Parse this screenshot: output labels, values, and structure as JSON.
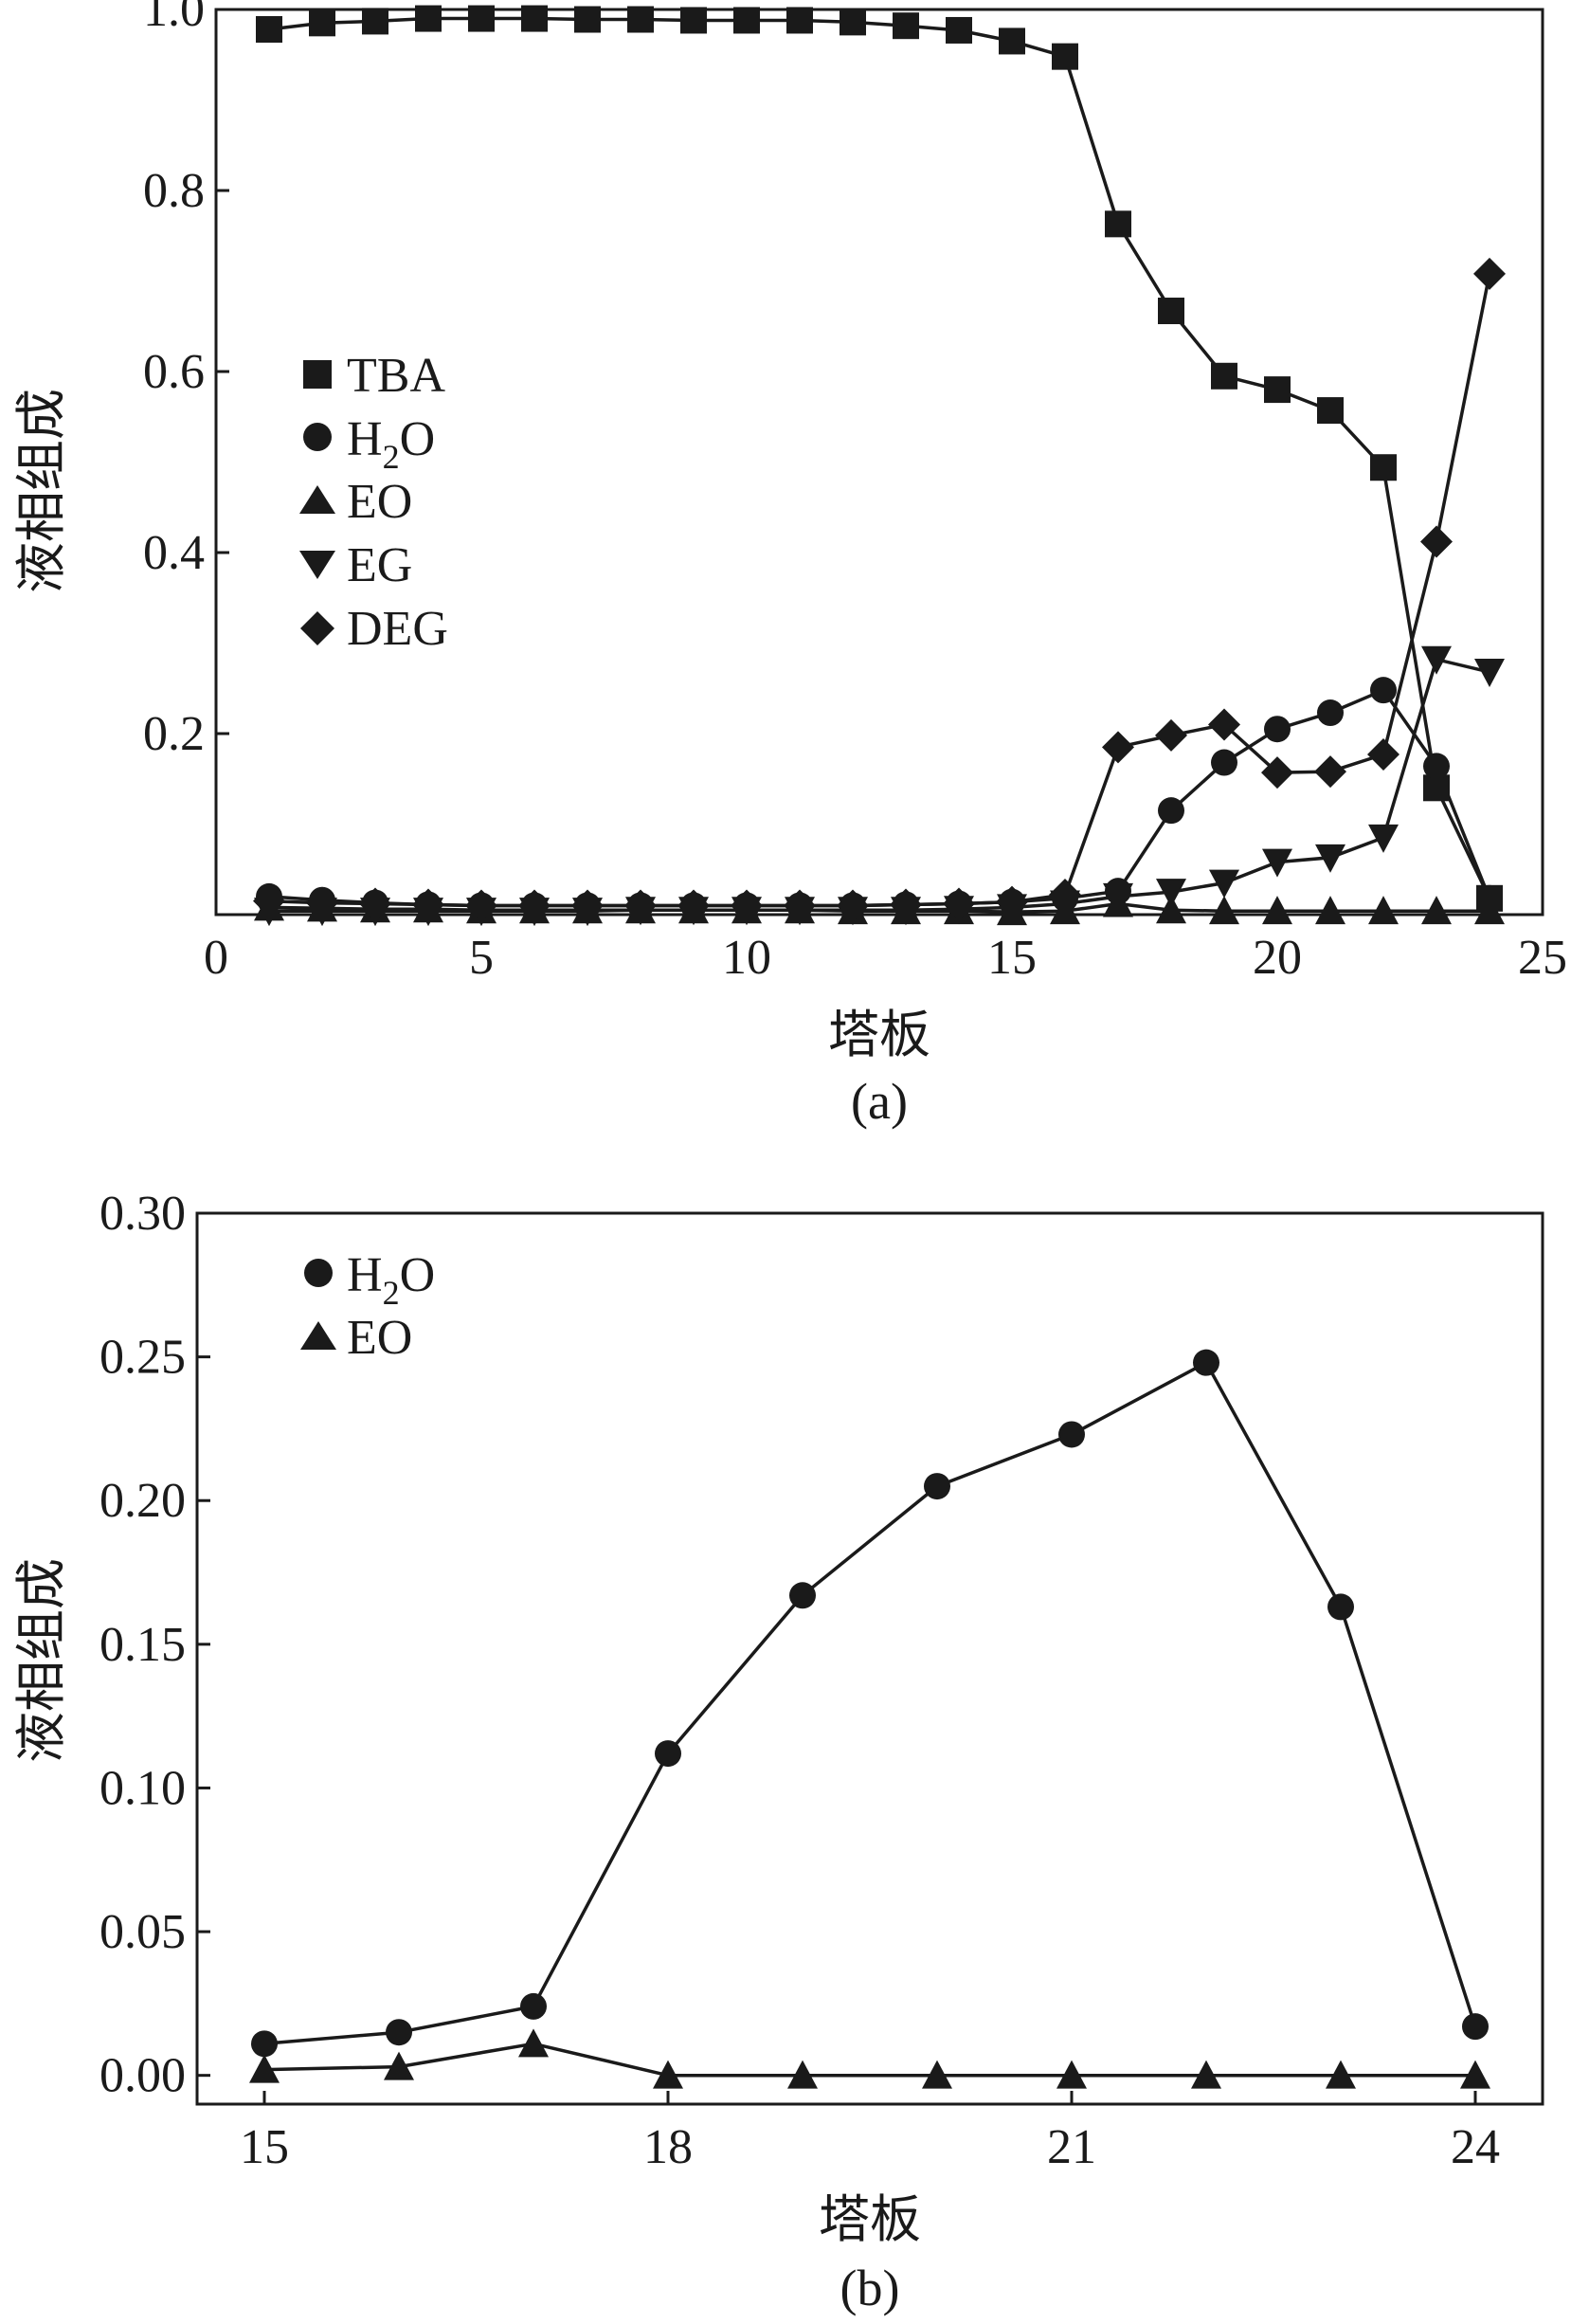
{
  "chart_data": [
    {
      "type": "line",
      "panel_label": "(a)",
      "xlabel": "塔板",
      "ylabel": "液相组成",
      "xlim": [
        0,
        25
      ],
      "ylim": [
        0,
        1.0
      ],
      "xticks": [
        "0",
        "5",
        "10",
        "15",
        "20",
        "25"
      ],
      "yticks": [
        "0.2",
        "0.4",
        "0.6",
        "0.8",
        "1.0"
      ],
      "legend_position": "center-left",
      "x": [
        1,
        2,
        3,
        4,
        5,
        6,
        7,
        8,
        9,
        10,
        11,
        12,
        13,
        14,
        15,
        16,
        17,
        18,
        19,
        20,
        21,
        22,
        23,
        24
      ],
      "series": [
        {
          "name": "TBA",
          "marker": "square",
          "values": [
            0.978,
            0.985,
            0.987,
            0.99,
            0.99,
            0.99,
            0.989,
            0.989,
            0.988,
            0.988,
            0.988,
            0.986,
            0.982,
            0.977,
            0.965,
            0.948,
            0.763,
            0.667,
            0.595,
            0.58,
            0.557,
            0.494,
            0.14,
            0.018
          ]
        },
        {
          "name": "H2O",
          "name_base": "H",
          "name_sub": "2",
          "name_rest": "O",
          "marker": "circle",
          "values": [
            0.02,
            0.016,
            0.013,
            0.011,
            0.01,
            0.01,
            0.01,
            0.01,
            0.01,
            0.01,
            0.01,
            0.01,
            0.011,
            0.012,
            0.014,
            0.018,
            0.026,
            0.115,
            0.168,
            0.205,
            0.223,
            0.248,
            0.164,
            0.018
          ]
        },
        {
          "name": "EO",
          "marker": "triangle-up",
          "values": [
            0.008,
            0.007,
            0.006,
            0.006,
            0.005,
            0.005,
            0.005,
            0.005,
            0.005,
            0.005,
            0.005,
            0.004,
            0.004,
            0.004,
            0.003,
            0.004,
            0.012,
            0.005,
            0.004,
            0.004,
            0.004,
            0.004,
            0.004,
            0.004
          ]
        },
        {
          "name": "EG",
          "marker": "triangle-down",
          "values": [
            0.004,
            0.004,
            0.004,
            0.004,
            0.004,
            0.004,
            0.004,
            0.005,
            0.005,
            0.005,
            0.005,
            0.005,
            0.005,
            0.006,
            0.008,
            0.012,
            0.02,
            0.025,
            0.035,
            0.058,
            0.063,
            0.085,
            0.282,
            0.268
          ]
        },
        {
          "name": "DEG",
          "marker": "diamond",
          "values": [
            0.015,
            0.013,
            0.012,
            0.011,
            0.01,
            0.01,
            0.01,
            0.01,
            0.01,
            0.01,
            0.01,
            0.01,
            0.011,
            0.012,
            0.014,
            0.022,
            0.185,
            0.198,
            0.21,
            0.157,
            0.158,
            0.177,
            0.412,
            0.708
          ]
        }
      ]
    },
    {
      "type": "line",
      "panel_label": "(b)",
      "xlabel": "塔板",
      "ylabel": "液相组成",
      "xlim": [
        14.5,
        24.5
      ],
      "ylim": [
        -0.01,
        0.3
      ],
      "xticks": [
        "15",
        "18",
        "21",
        "24"
      ],
      "yticks": [
        "0.00",
        "0.05",
        "0.10",
        "0.15",
        "0.20",
        "0.25",
        "0.30"
      ],
      "legend_position": "top-left",
      "x": [
        15,
        16,
        17,
        18,
        19,
        20,
        21,
        22,
        23,
        24
      ],
      "series": [
        {
          "name": "H2O",
          "name_base": "H",
          "name_sub": "2",
          "name_rest": "O",
          "marker": "circle",
          "values": [
            0.011,
            0.015,
            0.024,
            0.112,
            0.167,
            0.205,
            0.223,
            0.248,
            0.163,
            0.017
          ]
        },
        {
          "name": "EO",
          "marker": "triangle-up",
          "values": [
            0.002,
            0.003,
            0.011,
            0.0,
            0.0,
            0.0,
            0.0,
            0.0,
            0.0,
            0.0
          ]
        }
      ]
    }
  ]
}
